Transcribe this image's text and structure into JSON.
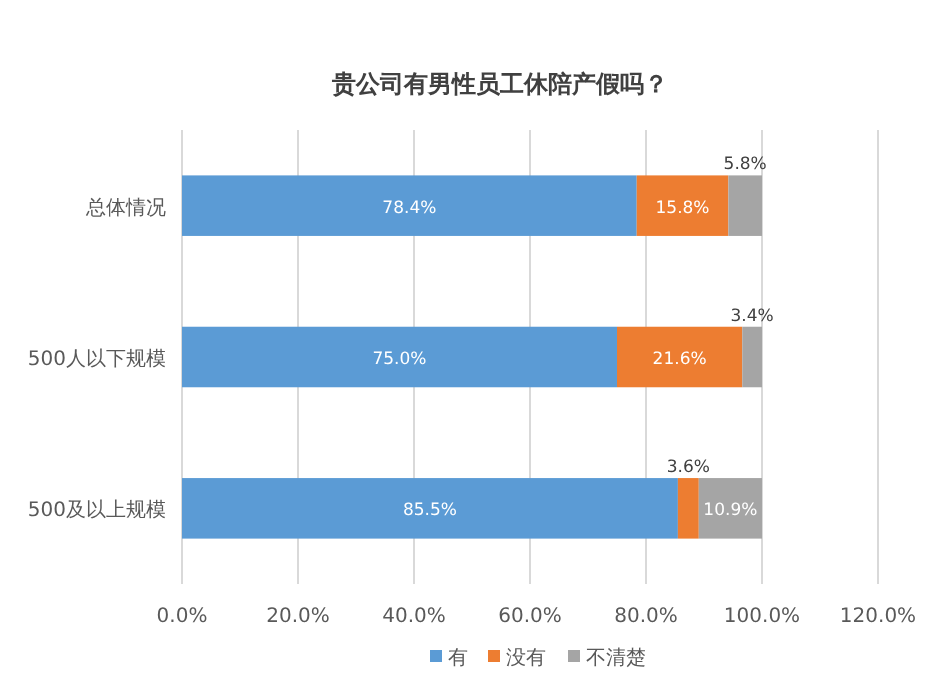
{
  "chart_data": {
    "type": "bar",
    "orientation": "horizontal",
    "stacked": true,
    "title": "贵公司有男性员工休陪产假吗？",
    "categories": [
      "总体情况",
      "500人以下规模",
      "500及以上规模"
    ],
    "series": [
      {
        "name": "有",
        "color": "#5b9bd5",
        "values": [
          78.4,
          75.0,
          85.5
        ],
        "value_labels": [
          "78.4%",
          "75.0%",
          "85.5%"
        ]
      },
      {
        "name": "没有",
        "color": "#ed7d31",
        "values": [
          15.8,
          21.6,
          3.6
        ],
        "value_labels": [
          "15.8%",
          "21.6%",
          "3.6%"
        ]
      },
      {
        "name": "不清楚",
        "color": "#a5a5a5",
        "values": [
          5.8,
          3.4,
          10.9
        ],
        "value_labels": [
          "5.8%",
          "3.4%",
          "10.9%"
        ]
      }
    ],
    "xlim": [
      0,
      120
    ],
    "xticks": [
      {
        "value": 0,
        "label": "0.0%"
      },
      {
        "value": 20,
        "label": "20.0%"
      },
      {
        "value": 40,
        "label": "40.0%"
      },
      {
        "value": 60,
        "label": "60.0%"
      },
      {
        "value": 80,
        "label": "80.0%"
      },
      {
        "value": 100,
        "label": "100.0%"
      },
      {
        "value": 120,
        "label": "120.0%"
      }
    ],
    "grid": "x",
    "legend": "bottom"
  }
}
